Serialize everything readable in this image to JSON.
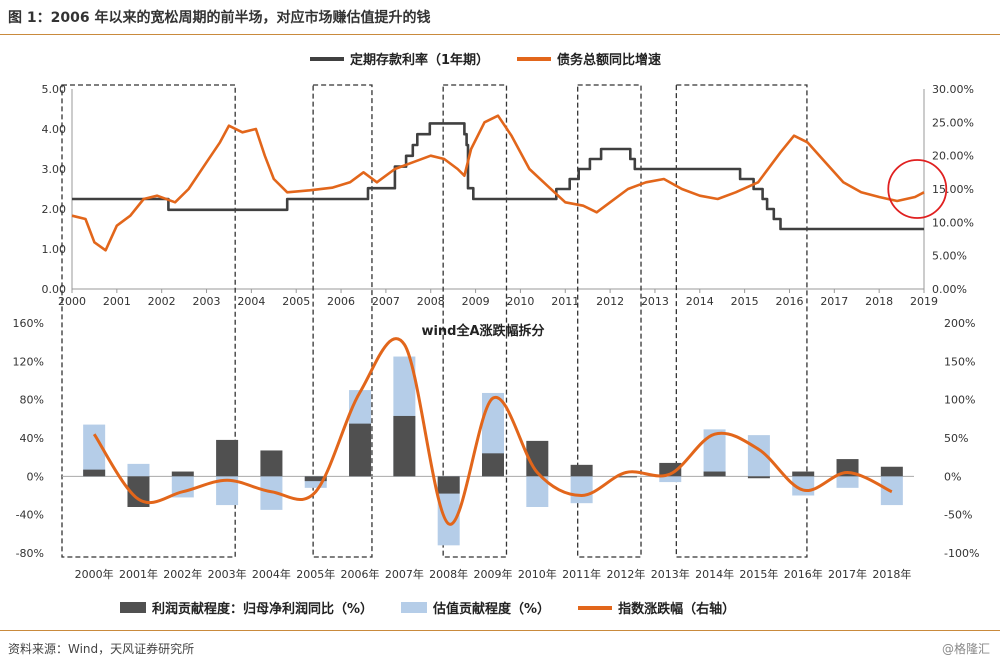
{
  "page": {
    "title": "图 1：2006 年以来的宽松周期的前半场，对应市场赚估值提升的钱",
    "source": "资料来源：Wind，天风证券研究所",
    "watermark": "@格隆汇"
  },
  "chart_data": [
    {
      "type": "line",
      "title": "",
      "legend_placement": "top",
      "x_ticks": [
        "2000",
        "2001",
        "2002",
        "2003",
        "2004",
        "2005",
        "2006",
        "2007",
        "2008",
        "2009",
        "2010",
        "2011",
        "2012",
        "2013",
        "2014",
        "2015",
        "2016",
        "2017",
        "2018",
        "2019"
      ],
      "y_left": {
        "range": [
          0,
          5
        ],
        "ticks": [
          "0.00",
          "1.00",
          "2.00",
          "3.00",
          "4.00",
          "5.00"
        ]
      },
      "y_right": {
        "range": [
          0,
          30
        ],
        "ticks": [
          "0.00%",
          "5.00%",
          "10.00%",
          "15.00%",
          "20.00%",
          "25.00%",
          "30.00%"
        ]
      },
      "series": [
        {
          "name": "定期存款利率（1年期）",
          "axis": "left",
          "color": "#404040",
          "step": true,
          "points": [
            [
              2000.0,
              2.25
            ],
            [
              2002.15,
              2.25
            ],
            [
              2002.15,
              1.98
            ],
            [
              2004.8,
              1.98
            ],
            [
              2004.8,
              2.25
            ],
            [
              2006.6,
              2.25
            ],
            [
              2006.6,
              2.52
            ],
            [
              2007.2,
              2.52
            ],
            [
              2007.2,
              3.06
            ],
            [
              2007.45,
              3.06
            ],
            [
              2007.45,
              3.33
            ],
            [
              2007.6,
              3.33
            ],
            [
              2007.6,
              3.6
            ],
            [
              2007.7,
              3.6
            ],
            [
              2007.7,
              3.87
            ],
            [
              2007.98,
              3.87
            ],
            [
              2007.98,
              4.14
            ],
            [
              2008.75,
              4.14
            ],
            [
              2008.75,
              3.87
            ],
            [
              2008.8,
              3.87
            ],
            [
              2008.8,
              3.6
            ],
            [
              2008.83,
              3.6
            ],
            [
              2008.83,
              2.52
            ],
            [
              2008.95,
              2.52
            ],
            [
              2008.95,
              2.25
            ],
            [
              2010.8,
              2.25
            ],
            [
              2010.8,
              2.5
            ],
            [
              2011.1,
              2.5
            ],
            [
              2011.1,
              2.75
            ],
            [
              2011.3,
              2.75
            ],
            [
              2011.3,
              3.0
            ],
            [
              2011.55,
              3.0
            ],
            [
              2011.55,
              3.25
            ],
            [
              2011.8,
              3.25
            ],
            [
              2011.8,
              3.5
            ],
            [
              2012.45,
              3.5
            ],
            [
              2012.45,
              3.25
            ],
            [
              2012.55,
              3.25
            ],
            [
              2012.55,
              3.0
            ],
            [
              2014.9,
              3.0
            ],
            [
              2014.9,
              2.75
            ],
            [
              2015.2,
              2.75
            ],
            [
              2015.2,
              2.5
            ],
            [
              2015.4,
              2.5
            ],
            [
              2015.4,
              2.25
            ],
            [
              2015.5,
              2.25
            ],
            [
              2015.5,
              2.0
            ],
            [
              2015.65,
              2.0
            ],
            [
              2015.65,
              1.75
            ],
            [
              2015.8,
              1.75
            ],
            [
              2015.8,
              1.5
            ],
            [
              2019.0,
              1.5
            ]
          ]
        },
        {
          "name": "债务总额同比增速",
          "axis": "right",
          "color": "#e2661b",
          "points": [
            [
              2000.0,
              11.0
            ],
            [
              2000.3,
              10.5
            ],
            [
              2000.5,
              7.0
            ],
            [
              2000.75,
              5.8
            ],
            [
              2001.0,
              9.5
            ],
            [
              2001.3,
              11.0
            ],
            [
              2001.6,
              13.5
            ],
            [
              2001.9,
              14.0
            ],
            [
              2002.3,
              13.0
            ],
            [
              2002.6,
              15.0
            ],
            [
              2003.0,
              19.0
            ],
            [
              2003.3,
              22.0
            ],
            [
              2003.5,
              24.5
            ],
            [
              2003.8,
              23.5
            ],
            [
              2004.1,
              24.0
            ],
            [
              2004.3,
              20.0
            ],
            [
              2004.5,
              16.5
            ],
            [
              2004.8,
              14.5
            ],
            [
              2005.3,
              14.8
            ],
            [
              2005.8,
              15.2
            ],
            [
              2006.2,
              16.0
            ],
            [
              2006.5,
              17.5
            ],
            [
              2006.8,
              16.0
            ],
            [
              2007.2,
              18.0
            ],
            [
              2007.6,
              19.0
            ],
            [
              2008.0,
              20.0
            ],
            [
              2008.3,
              19.5
            ],
            [
              2008.6,
              18.0
            ],
            [
              2008.75,
              17.0
            ],
            [
              2008.9,
              21.0
            ],
            [
              2009.2,
              25.0
            ],
            [
              2009.5,
              26.0
            ],
            [
              2009.8,
              23.0
            ],
            [
              2010.2,
              18.0
            ],
            [
              2010.6,
              15.5
            ],
            [
              2011.0,
              13.0
            ],
            [
              2011.4,
              12.5
            ],
            [
              2011.7,
              11.5
            ],
            [
              2012.0,
              13.0
            ],
            [
              2012.4,
              15.0
            ],
            [
              2012.8,
              16.0
            ],
            [
              2013.2,
              16.5
            ],
            [
              2013.6,
              15.0
            ],
            [
              2014.0,
              14.0
            ],
            [
              2014.4,
              13.5
            ],
            [
              2014.8,
              14.5
            ],
            [
              2015.3,
              16.0
            ],
            [
              2015.8,
              20.5
            ],
            [
              2016.1,
              23.0
            ],
            [
              2016.4,
              22.0
            ],
            [
              2016.8,
              19.0
            ],
            [
              2017.2,
              16.0
            ],
            [
              2017.6,
              14.5
            ],
            [
              2018.0,
              13.8
            ],
            [
              2018.4,
              13.2
            ],
            [
              2018.8,
              13.8
            ],
            [
              2019.0,
              14.5
            ]
          ]
        }
      ],
      "shaded_periods": [
        [
          2000.0,
          2003.55
        ],
        [
          2005.6,
          2006.6
        ],
        [
          2008.5,
          2009.6
        ],
        [
          2011.5,
          2012.6
        ],
        [
          2013.7,
          2016.3
        ]
      ],
      "highlight_circle": {
        "x": 2018.85,
        "y_right": 15.0
      }
    },
    {
      "type": "bar",
      "title": "wind全A涨跌幅拆分",
      "legend_placement": "bottom",
      "categories": [
        "2000年",
        "2001年",
        "2002年",
        "2003年",
        "2004年",
        "2005年",
        "2006年",
        "2007年",
        "2008年",
        "2009年",
        "2010年",
        "2011年",
        "2012年",
        "2013年",
        "2014年",
        "2015年",
        "2016年",
        "2017年",
        "2018年"
      ],
      "y_left": {
        "range": [
          -80,
          160
        ],
        "ticks": [
          "-80%",
          "-40%",
          "0%",
          "40%",
          "80%",
          "120%",
          "160%"
        ]
      },
      "y_right": {
        "range": [
          -100,
          200
        ],
        "ticks": [
          "-100%",
          "-50%",
          "0%",
          "50%",
          "100%",
          "150%",
          "200%"
        ]
      },
      "series": [
        {
          "name": "利润贡献程度：归母净利润同比（%）",
          "axis": "left",
          "color": "#505050",
          "values": [
            7,
            -32,
            5,
            38,
            27,
            -5,
            55,
            63,
            -18,
            24,
            37,
            12,
            -1,
            14,
            5,
            -2,
            5,
            18,
            10
          ]
        },
        {
          "name": "估值贡献程度（%）",
          "axis": "left",
          "color": "#b5cde8",
          "values": [
            54,
            13,
            -22,
            -30,
            -35,
            -12,
            90,
            125,
            -72,
            87,
            -32,
            -28,
            -1,
            -6,
            49,
            43,
            -20,
            -12,
            -30
          ]
        },
        {
          "name": "指数涨跌幅（右轴）",
          "axis": "right",
          "color": "#e2661b",
          "smooth": true,
          "values": [
            55,
            -30,
            -20,
            -5,
            -20,
            -20,
            110,
            172,
            -62,
            102,
            5,
            -25,
            5,
            3,
            55,
            35,
            -18,
            5,
            -20
          ]
        }
      ],
      "shaded_periods": [
        [
          0,
          3
        ],
        [
          6,
          6
        ],
        [
          9,
          9
        ],
        [
          12,
          12
        ],
        [
          14,
          16
        ]
      ]
    }
  ]
}
